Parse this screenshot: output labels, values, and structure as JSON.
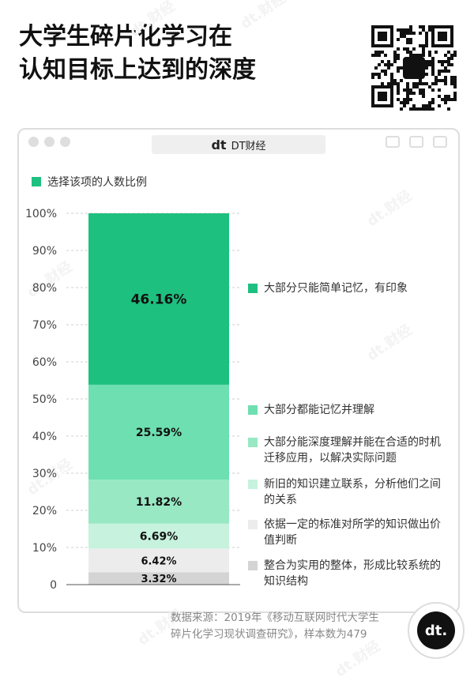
{
  "header": {
    "title_line1": "大学生碎片化学习在",
    "title_line2": "认知目标上达到的深度"
  },
  "window": {
    "brand_logo": "dt",
    "brand": "DT财经"
  },
  "badge_text": "dt.",
  "watermark": "dt.财经",
  "source": {
    "line1": "数据来源：2019年《移动互联网时代大学生",
    "line2": "碎片化学习现状调查研究》，样本数为479"
  },
  "chart_data": {
    "type": "bar",
    "stacked": true,
    "categories": [
      ""
    ],
    "legend_top": "选择该项的人数比例",
    "yticks": [
      "0",
      "10%",
      "20%",
      "30%",
      "40%",
      "50%",
      "60%",
      "70%",
      "80%",
      "90%",
      "100%"
    ],
    "ylim": [
      0,
      100
    ],
    "grid": true,
    "legend_position": "right",
    "series": [
      {
        "name": "整合为实用的整体，形成比较系统的知识结构",
        "value": 3.32,
        "label": "3.32%",
        "color": "#d4d4d4"
      },
      {
        "name": "依据一定的标准对所学的知识做出价值判断",
        "value": 6.42,
        "label": "6.42%",
        "color": "#ececec"
      },
      {
        "name": "新旧的知识建立联系，分析他们之间的关系",
        "value": 6.69,
        "label": "6.69%",
        "color": "#c6f2de"
      },
      {
        "name": "大部分能深度理解并能在合适的时机迁移应用，以解决实际问题",
        "value": 11.82,
        "label": "11.82%",
        "color": "#98e8c3"
      },
      {
        "name": "大部分都能记忆并理解",
        "value": 25.59,
        "label": "25.59%",
        "color": "#6ddfb0"
      },
      {
        "name": "大部分只能简单记忆，有印象",
        "value": 46.16,
        "label": "46.16%",
        "color": "#1dc07f"
      }
    ],
    "legend_top_color": "#1dc07f"
  }
}
